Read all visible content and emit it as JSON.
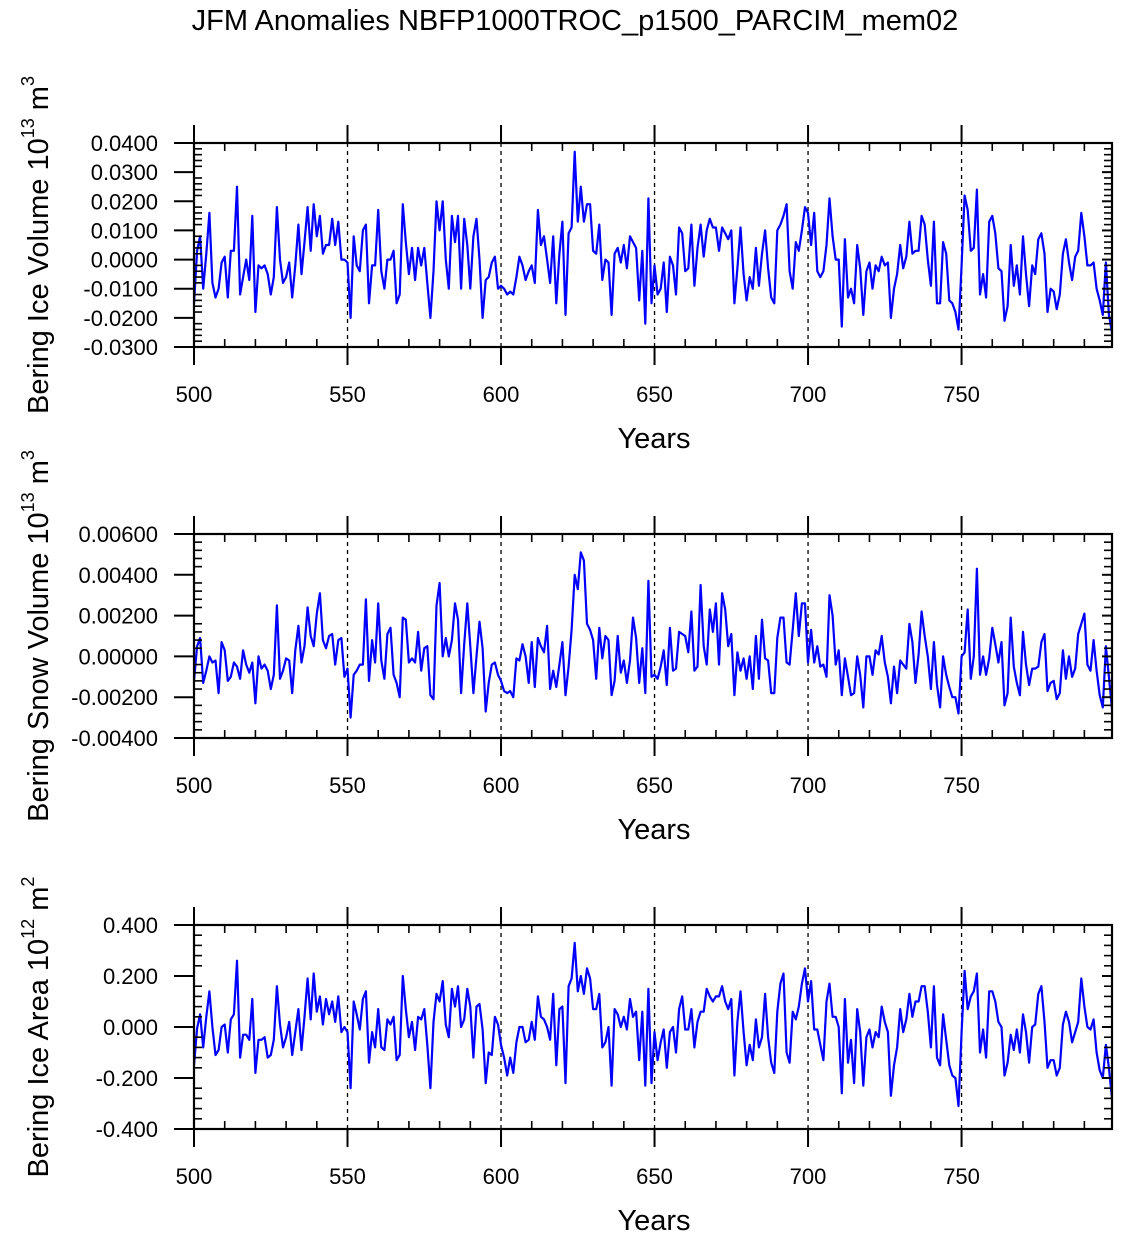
{
  "title": "JFM Anomalies NBFP1000TROC_p1500_PARCIM_mem02",
  "colors": {
    "series": "#0000ff",
    "axis": "#000000",
    "refline": "#000000"
  },
  "chart_data": [
    {
      "type": "line",
      "title": "",
      "xlabel": "Years",
      "ylabel": {
        "text": "Bering Ice Volume 10",
        "exp": "13",
        "unit": " m",
        "unit_exp": "3"
      },
      "xlim": [
        500,
        799
      ],
      "ylim": [
        -0.03,
        0.04
      ],
      "x_start": 500,
      "x_step": 1,
      "xticks": [
        500,
        550,
        600,
        650,
        700,
        750
      ],
      "xtick_labels": [
        "500",
        "550",
        "600",
        "650",
        "700",
        "750"
      ],
      "yticks": [
        0.04,
        0.03,
        0.02,
        0.01,
        0.0,
        -0.01,
        -0.02,
        -0.03
      ],
      "ytick_labels": [
        "0.0400",
        "0.0300",
        "0.0200",
        "0.0100",
        "0.0000",
        "-0.0100",
        "-0.0200",
        "-0.0300"
      ],
      "reference_lines_x": [
        550,
        600,
        650,
        700,
        750
      ],
      "grid": false,
      "values": [
        -0.015,
        0.003,
        0.008,
        -0.01,
        0.002,
        0.016,
        -0.008,
        -0.013,
        -0.01,
        -0.001,
        0.001,
        -0.013,
        0.003,
        0.003,
        0.025,
        -0.012,
        -0.006,
        0.0,
        -0.007,
        0.015,
        -0.018,
        -0.002,
        -0.003,
        -0.002,
        -0.005,
        -0.012,
        -0.006,
        0.018,
        0.0,
        -0.008,
        -0.006,
        -0.001,
        -0.013,
        -0.002,
        0.012,
        -0.005,
        0.006,
        0.018,
        0.003,
        0.019,
        0.008,
        0.015,
        0.002,
        0.005,
        0.005,
        0.014,
        0.005,
        0.013,
        0.0,
        0.0,
        -0.001,
        -0.02,
        0.008,
        -0.002,
        -0.004,
        0.01,
        0.012,
        -0.015,
        -0.002,
        -0.002,
        0.017,
        -0.004,
        -0.01,
        0.0,
        0.0,
        0.003,
        -0.015,
        -0.012,
        0.019,
        0.006,
        -0.005,
        0.004,
        -0.007,
        0.004,
        -0.002,
        0.004,
        -0.008,
        -0.02,
        -0.004,
        0.02,
        0.01,
        0.02,
        0.0,
        -0.01,
        0.015,
        0.006,
        0.015,
        -0.01,
        0.014,
        0.005,
        -0.01,
        0.008,
        0.014,
        0.0,
        -0.02,
        -0.007,
        -0.006,
        -0.001,
        0.001,
        -0.01,
        -0.009,
        -0.01,
        -0.012,
        -0.011,
        -0.012,
        -0.006,
        0.001,
        -0.002,
        -0.007,
        -0.004,
        -0.002,
        -0.008,
        0.017,
        0.005,
        0.008,
        0.0,
        -0.008,
        0.008,
        -0.015,
        0.002,
        0.013,
        -0.019,
        0.009,
        0.011,
        0.037,
        0.013,
        0.025,
        0.013,
        0.019,
        0.019,
        0.003,
        0.002,
        0.012,
        -0.007,
        0.0,
        -0.001,
        -0.019,
        0.002,
        0.004,
        -0.001,
        0.005,
        -0.003,
        0.008,
        0.006,
        0.004,
        -0.014,
        0.003,
        -0.022,
        0.021,
        -0.015,
        -0.002,
        -0.012,
        -0.01,
        -0.001,
        -0.018,
        0.001,
        -0.002,
        -0.012,
        0.011,
        0.009,
        -0.004,
        -0.003,
        0.012,
        -0.009,
        0.004,
        0.012,
        0.001,
        0.01,
        0.014,
        0.011,
        0.011,
        0.003,
        0.011,
        0.009,
        0.007,
        0.01,
        -0.015,
        -0.003,
        0.011,
        -0.005,
        -0.014,
        -0.006,
        -0.01,
        0.004,
        -0.009,
        0.002,
        0.01,
        -0.003,
        -0.013,
        -0.015,
        0.01,
        0.012,
        0.015,
        0.019,
        -0.004,
        -0.01,
        0.006,
        0.003,
        0.01,
        0.018,
        0.016,
        0.005,
        0.016,
        -0.004,
        -0.006,
        -0.004,
        0.005,
        0.021,
        0.008,
        0.0,
        0.0,
        -0.023,
        0.007,
        -0.013,
        -0.01,
        -0.015,
        0.005,
        -0.003,
        -0.019,
        -0.004,
        -0.001,
        -0.01,
        -0.002,
        -0.004,
        0.001,
        -0.002,
        -0.001,
        -0.02,
        -0.01,
        -0.005,
        0.005,
        -0.003,
        0.001,
        0.013,
        0.002,
        0.003,
        0.003,
        0.015,
        0.012,
        0.0,
        -0.009,
        0.013,
        -0.015,
        -0.015,
        0.006,
        0.002,
        -0.014,
        -0.015,
        -0.018,
        -0.024,
        -0.002,
        0.022,
        0.017,
        0.003,
        0.004,
        0.024,
        -0.012,
        -0.005,
        -0.013,
        0.013,
        0.015,
        0.009,
        -0.003,
        -0.004,
        -0.021,
        -0.016,
        0.005,
        -0.009,
        -0.002,
        -0.012,
        0.008,
        -0.005,
        -0.016,
        -0.002,
        -0.005,
        0.007,
        0.009,
        0.002,
        -0.018,
        -0.01,
        -0.011,
        -0.017,
        -0.012,
        0.002,
        0.007,
        -0.001,
        -0.007,
        0.001,
        0.003,
        0.016,
        0.008,
        -0.002,
        -0.002,
        -0.001,
        -0.01,
        -0.014,
        -0.019,
        -0.001,
        -0.019,
        -0.025
      ]
    },
    {
      "type": "line",
      "title": "",
      "xlabel": "Years",
      "ylabel": {
        "text": "Bering Snow Volume 10",
        "exp": "13",
        "unit": " m",
        "unit_exp": "3"
      },
      "xlim": [
        500,
        799
      ],
      "ylim": [
        -0.004,
        0.006
      ],
      "x_start": 500,
      "x_step": 1,
      "xticks": [
        500,
        550,
        600,
        650,
        700,
        750
      ],
      "xtick_labels": [
        "500",
        "550",
        "600",
        "650",
        "700",
        "750"
      ],
      "yticks": [
        0.006,
        0.004,
        0.002,
        0.0,
        -0.002,
        -0.004
      ],
      "ytick_labels": [
        "0.00600",
        "0.00400",
        "0.00200",
        "0.00000",
        "-0.00200",
        "-0.00400"
      ],
      "reference_lines_x": [
        550,
        600,
        650,
        700,
        750
      ],
      "grid": false,
      "values": [
        -0.0012,
        0.0005,
        0.0009,
        -0.0013,
        -0.0007,
        0.0,
        -0.0003,
        -0.0002,
        -0.0018,
        0.0007,
        0.0003,
        -0.0012,
        -0.001,
        -0.0003,
        -0.0005,
        -0.0011,
        0.0003,
        -0.0004,
        -0.0008,
        -0.0003,
        -0.0023,
        0.0,
        -0.0006,
        -0.0004,
        -0.0007,
        -0.0016,
        -0.0009,
        0.0025,
        -0.0011,
        -0.0007,
        -0.0001,
        -0.0002,
        -0.0018,
        0.0003,
        0.0015,
        -0.0003,
        0.0005,
        0.0024,
        0.001,
        0.0005,
        0.0021,
        0.0031,
        0.0008,
        0.0004,
        0.001,
        0.0011,
        -0.0004,
        0.0008,
        0.0009,
        -0.001,
        -0.0006,
        -0.003,
        -0.0009,
        -0.0007,
        -0.0004,
        -0.0004,
        0.0028,
        -0.0012,
        0.0008,
        -0.0003,
        0.0026,
        -0.0002,
        -0.0011,
        0.0011,
        0.0014,
        -0.0009,
        -0.0013,
        -0.002,
        0.0019,
        0.0018,
        -0.0003,
        -0.0001,
        -0.0003,
        0.0012,
        -0.0007,
        0.0004,
        0.0005,
        -0.0019,
        -0.0021,
        0.0025,
        0.0036,
        0.0,
        0.0009,
        0.0,
        0.0008,
        0.0026,
        0.0018,
        -0.0018,
        0.0006,
        0.0026,
        0.0005,
        -0.0018,
        0.0,
        0.0017,
        0.0004,
        -0.0027,
        -0.0013,
        -0.0004,
        -0.0003,
        -0.0009,
        -0.0012,
        -0.0017,
        -0.0018,
        -0.0017,
        -0.002,
        -0.0001,
        -0.0002,
        0.0006,
        0.0,
        -0.0013,
        0.0007,
        -0.0015,
        0.0009,
        0.0005,
        0.0002,
        0.0015,
        -0.0016,
        -0.0007,
        -0.0015,
        -0.0004,
        0.0007,
        -0.0019,
        -0.0005,
        0.0013,
        0.004,
        0.0033,
        0.0051,
        0.0047,
        0.0016,
        0.0013,
        0.0008,
        -0.0011,
        0.0014,
        -0.0001,
        0.001,
        0.0008,
        -0.0019,
        -0.0012,
        0.001,
        -0.0008,
        -0.0002,
        -0.0013,
        -0.0002,
        0.0019,
        0.0009,
        -0.0013,
        0.0004,
        -0.0018,
        0.0037,
        -0.001,
        -0.0009,
        -0.0011,
        -0.0005,
        0.0003,
        -0.0014,
        0.0014,
        -0.0007,
        -0.0006,
        0.0012,
        0.0011,
        0.001,
        0.0002,
        0.0022,
        -0.0007,
        -0.0005,
        0.0035,
        0.0005,
        -0.0004,
        0.0023,
        0.0012,
        0.0026,
        -0.0004,
        0.0031,
        0.0023,
        0.0005,
        0.0011,
        -0.0019,
        0.0002,
        -0.0007,
        -0.0001,
        -0.0011,
        0.0,
        -0.0016,
        0.001,
        -0.0011,
        0.0018,
        -0.0001,
        -0.0002,
        -0.0018,
        -0.0018,
        0.0009,
        0.0019,
        0.0019,
        -0.0003,
        -0.0004,
        0.0013,
        0.0031,
        0.001,
        0.0026,
        0.0026,
        -0.0003,
        0.0013,
        -0.0003,
        0.0005,
        -0.0005,
        -0.0004,
        -0.001,
        0.003,
        0.002,
        -0.0004,
        0.0003,
        -0.0019,
        -0.0001,
        -0.001,
        -0.0019,
        -0.0018,
        0.0,
        -0.0009,
        -0.0025,
        0.0,
        0.0,
        -0.0009,
        0.0003,
        0.0001,
        0.001,
        -0.0003,
        -0.001,
        -0.0023,
        -0.0005,
        -0.0018,
        -0.0002,
        -0.0004,
        -0.0006,
        0.0016,
        0.0007,
        -0.0013,
        0.0001,
        0.0022,
        0.001,
        0.0,
        -0.0016,
        0.0007,
        -0.0014,
        -0.0025,
        0.0,
        -0.0009,
        -0.0015,
        -0.002,
        -0.002,
        -0.0028,
        0.0,
        0.0002,
        0.0023,
        -0.0011,
        0.0,
        0.0043,
        -0.0009,
        0.0,
        -0.0009,
        -0.0001,
        0.0014,
        0.0006,
        -0.0003,
        0.0007,
        -0.0024,
        -0.0018,
        0.0019,
        -0.0005,
        -0.0013,
        -0.0019,
        0.0012,
        -0.0004,
        -0.0014,
        -0.0006,
        -0.0006,
        -0.0005,
        0.0007,
        0.0011,
        -0.0017,
        -0.0013,
        -0.0012,
        -0.0021,
        -0.0018,
        0.0003,
        -0.0011,
        0.0,
        -0.001,
        -0.0006,
        0.0011,
        0.0016,
        0.0021,
        -0.0004,
        -0.0007,
        0.0008,
        -0.0007,
        -0.0019,
        -0.0025,
        0.0005,
        -0.001,
        -0.0026
      ]
    },
    {
      "type": "line",
      "title": "",
      "xlabel": "Years",
      "ylabel": {
        "text": "Bering Ice Area 10",
        "exp": "12",
        "unit": " m",
        "unit_exp": "2"
      },
      "xlim": [
        500,
        799
      ],
      "ylim": [
        -0.4,
        0.4
      ],
      "x_start": 500,
      "x_step": 1,
      "xticks": [
        500,
        550,
        600,
        650,
        700,
        750
      ],
      "xtick_labels": [
        "500",
        "550",
        "600",
        "650",
        "700",
        "750"
      ],
      "yticks": [
        0.4,
        0.2,
        0.0,
        -0.2,
        -0.4
      ],
      "ytick_labels": [
        "0.400",
        "0.200",
        "0.000",
        "-0.200",
        "-0.400"
      ],
      "reference_lines_x": [
        550,
        600,
        650,
        700,
        750
      ],
      "grid": false,
      "values": [
        -0.15,
        -0.005,
        0.05,
        -0.08,
        0.04,
        0.14,
        0.0,
        -0.11,
        -0.09,
        0.0,
        0.01,
        -0.1,
        0.03,
        0.05,
        0.26,
        -0.12,
        -0.03,
        -0.03,
        -0.05,
        0.11,
        -0.18,
        -0.05,
        -0.05,
        -0.04,
        -0.12,
        -0.11,
        -0.05,
        0.16,
        0.01,
        -0.08,
        -0.04,
        0.02,
        -0.11,
        -0.02,
        0.07,
        -0.09,
        0.04,
        0.19,
        0.03,
        0.21,
        0.06,
        0.12,
        0.01,
        0.11,
        0.05,
        0.1,
        0.02,
        0.12,
        -0.02,
        0.0,
        -0.02,
        -0.24,
        0.1,
        0.05,
        -0.01,
        0.11,
        0.14,
        -0.14,
        -0.02,
        -0.08,
        0.07,
        -0.08,
        -0.09,
        0.03,
        0.01,
        0.04,
        -0.13,
        -0.11,
        0.2,
        0.07,
        -0.04,
        0.02,
        -0.09,
        0.04,
        0.03,
        0.07,
        -0.07,
        -0.24,
        0.02,
        0.13,
        0.1,
        0.18,
        0.01,
        -0.04,
        0.15,
        0.08,
        0.16,
        0.0,
        0.03,
        0.15,
        0.08,
        -0.12,
        0.08,
        0.09,
        -0.01,
        -0.22,
        -0.1,
        -0.11,
        0.04,
        0.01,
        -0.07,
        -0.12,
        -0.19,
        -0.12,
        -0.18,
        -0.06,
        0.0,
        0.0,
        -0.06,
        -0.05,
        0.02,
        -0.05,
        0.12,
        0.04,
        0.03,
        0.0,
        -0.05,
        0.13,
        -0.15,
        0.07,
        0.08,
        -0.22,
        0.16,
        0.19,
        0.33,
        0.14,
        0.2,
        0.13,
        0.23,
        0.19,
        0.07,
        0.07,
        0.13,
        -0.08,
        -0.06,
        0.0,
        -0.23,
        0.07,
        0.05,
        0.0,
        0.04,
        -0.01,
        0.11,
        0.04,
        0.06,
        -0.13,
        0.06,
        -0.23,
        0.15,
        -0.22,
        -0.02,
        -0.13,
        -0.06,
        -0.01,
        -0.16,
        -0.02,
        0.0,
        -0.1,
        0.07,
        0.12,
        -0.01,
        -0.01,
        0.07,
        -0.08,
        0.02,
        0.06,
        0.06,
        0.15,
        0.12,
        0.1,
        0.12,
        0.12,
        0.16,
        0.1,
        0.07,
        0.11,
        -0.19,
        0.02,
        0.14,
        -0.02,
        -0.15,
        -0.07,
        -0.13,
        0.03,
        -0.08,
        -0.04,
        0.13,
        -0.04,
        -0.14,
        -0.18,
        0.06,
        0.17,
        0.21,
        -0.1,
        -0.14,
        0.06,
        0.03,
        0.08,
        0.17,
        0.23,
        0.1,
        0.18,
        -0.01,
        -0.01,
        -0.07,
        -0.13,
        0.1,
        0.17,
        0.04,
        0.04,
        0.0,
        -0.26,
        0.11,
        -0.14,
        -0.05,
        -0.22,
        0.07,
        -0.02,
        -0.23,
        -0.04,
        -0.01,
        -0.08,
        -0.02,
        -0.04,
        0.08,
        0.02,
        -0.02,
        -0.27,
        -0.15,
        -0.08,
        0.07,
        -0.02,
        0.03,
        0.13,
        0.04,
        0.1,
        0.1,
        0.16,
        0.16,
        0.06,
        -0.08,
        0.16,
        -0.12,
        -0.15,
        0.05,
        -0.05,
        -0.15,
        -0.19,
        -0.2,
        -0.31,
        -0.02,
        0.22,
        0.07,
        0.12,
        0.14,
        0.21,
        -0.1,
        -0.01,
        -0.12,
        0.14,
        0.14,
        0.1,
        0.02,
        0.0,
        -0.19,
        -0.14,
        -0.03,
        -0.09,
        -0.01,
        -0.1,
        0.05,
        -0.02,
        -0.14,
        0.0,
        0.01,
        0.13,
        0.16,
        0.02,
        -0.16,
        -0.13,
        -0.13,
        -0.19,
        -0.16,
        0.01,
        0.06,
        0.02,
        -0.06,
        -0.02,
        0.02,
        0.19,
        0.08,
        0.0,
        -0.01,
        0.03,
        -0.1,
        -0.17,
        -0.2,
        -0.07,
        -0.16,
        -0.28
      ]
    }
  ]
}
